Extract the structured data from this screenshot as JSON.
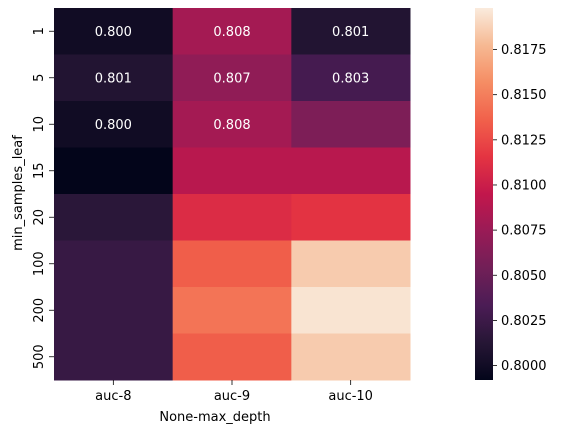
{
  "chart_data": {
    "type": "heatmap",
    "xlabel": "None-max_depth",
    "ylabel": "min_samples_leaf",
    "x_categories": [
      "auc-8",
      "auc-9",
      "auc-10"
    ],
    "y_categories": [
      "1",
      "5",
      "10",
      "15",
      "20",
      "100",
      "200",
      "500"
    ],
    "values": [
      [
        0.8,
        0.808,
        0.801
      ],
      [
        0.801,
        0.807,
        0.803
      ],
      [
        0.8,
        0.808,
        0.806
      ],
      [
        0.7992,
        0.809,
        0.809
      ],
      [
        0.8015,
        0.811,
        0.8115
      ],
      [
        0.8022,
        0.8135,
        0.8185
      ],
      [
        0.8022,
        0.8145,
        0.8195
      ],
      [
        0.8022,
        0.8135,
        0.8185
      ]
    ],
    "annotations": [
      [
        "0.800",
        "0.808",
        "0.801"
      ],
      [
        "0.801",
        "0.807",
        "0.803"
      ],
      [
        "0.800",
        "0.808",
        ""
      ],
      [
        "",
        "",
        ""
      ],
      [
        "",
        "",
        ""
      ],
      [
        "",
        "",
        ""
      ],
      [
        "",
        "",
        ""
      ],
      [
        "",
        "",
        ""
      ]
    ],
    "colorbar": {
      "vmin": 0.7992,
      "vmax": 0.8198,
      "ticks": [
        "0.8000",
        "0.8025",
        "0.8050",
        "0.8075",
        "0.8100",
        "0.8125",
        "0.8150",
        "0.8175"
      ],
      "colormap": "rocket"
    }
  }
}
